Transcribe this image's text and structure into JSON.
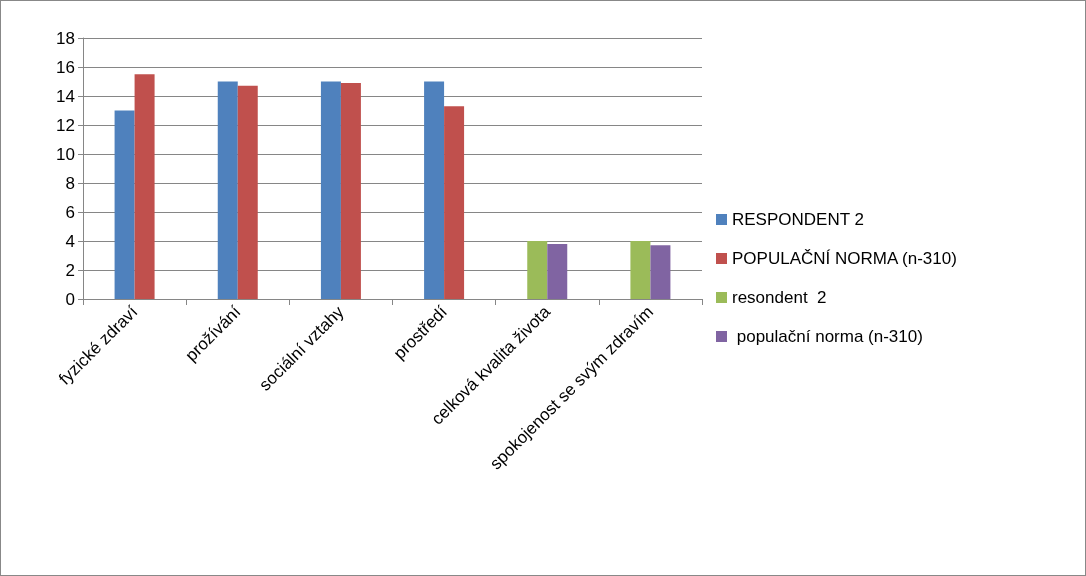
{
  "chart_data": {
    "type": "bar",
    "categories": [
      "fyzické zdraví",
      "prožívání",
      "sociální vztahy",
      "prostředí",
      "celková kvalita života",
      "spokojenost se svým zdravím"
    ],
    "series": [
      {
        "name": "RESPONDENT 2",
        "color": "#4f81bd",
        "values": [
          13,
          15,
          15,
          15,
          null,
          null
        ]
      },
      {
        "name": "POPULAČNÍ NORMA (n-310)",
        "color": "#c0504d",
        "values": [
          15.5,
          14.7,
          14.9,
          13.3,
          null,
          null
        ]
      },
      {
        "name": "resondent  2",
        "color": "#9bbb59",
        "values": [
          null,
          null,
          null,
          null,
          4,
          4
        ]
      },
      {
        "name": " populační norma (n-310)",
        "color": "#8064a2",
        "values": [
          null,
          null,
          null,
          null,
          3.8,
          3.7
        ]
      }
    ],
    "ylim": [
      0,
      18
    ],
    "yticks": [
      0,
      2,
      4,
      6,
      8,
      10,
      12,
      14,
      16,
      18
    ],
    "grid": "y",
    "legend": "right"
  }
}
